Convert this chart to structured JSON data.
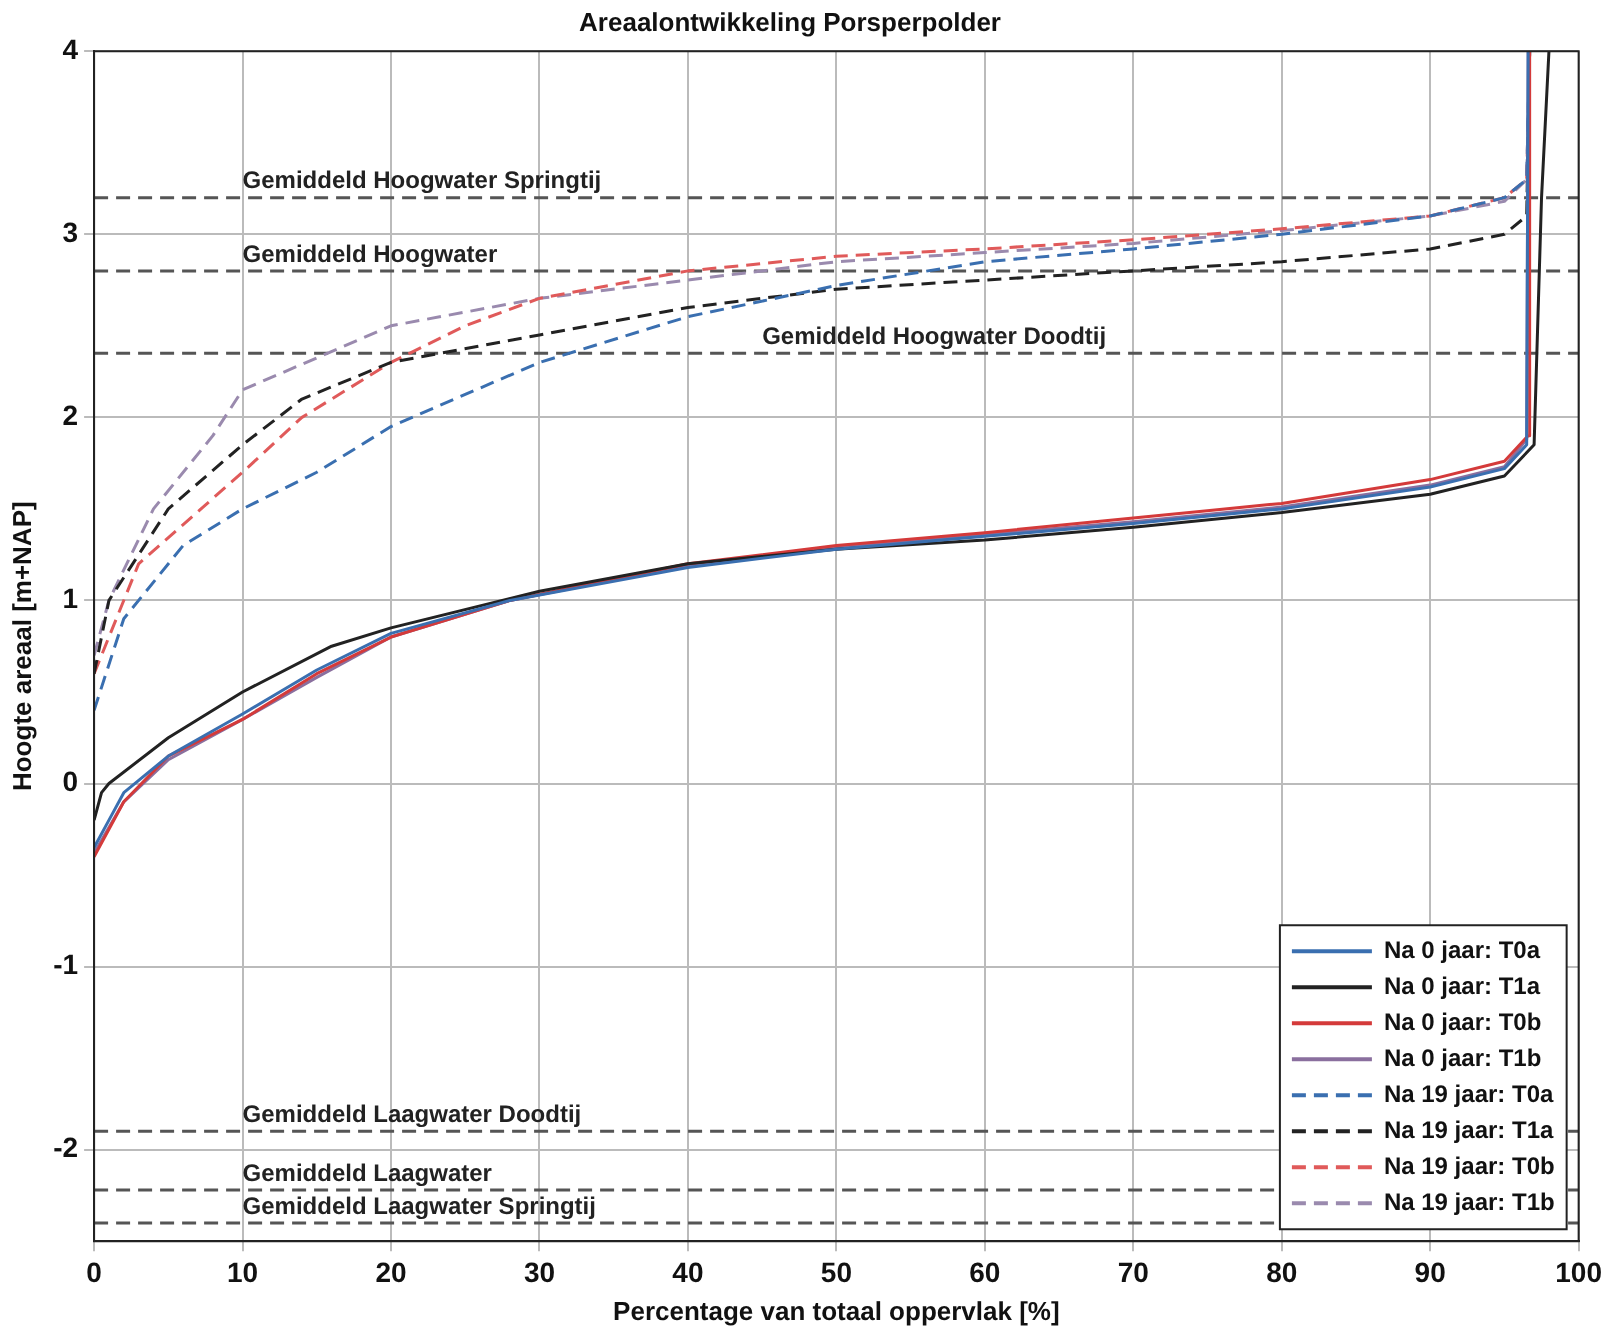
{
  "chart_data": {
    "type": "line",
    "title": "Areaalontwikkeling Porsperpolder",
    "xlabel": "Percentage van totaal oppervlak [%]",
    "ylabel": "Hoogte areaal [m+NAP]",
    "xlim": [
      0,
      100
    ],
    "ylim": [
      -2.5,
      4
    ],
    "xticks": [
      0,
      10,
      20,
      30,
      40,
      50,
      60,
      70,
      80,
      90,
      100
    ],
    "yticks": [
      -2,
      -1,
      0,
      1,
      2,
      3,
      4
    ],
    "grid": true,
    "legend": "bottom right",
    "series": [
      {
        "name": "Na 0 jaar: T0a",
        "color": "#3a6fb0",
        "line_style": "solid",
        "x": [
          0,
          1,
          2,
          5,
          10,
          15,
          20,
          28,
          40,
          50,
          60,
          70,
          80,
          90,
          95,
          96.5,
          96.6
        ],
        "values": [
          -0.35,
          -0.2,
          -0.05,
          0.15,
          0.38,
          0.62,
          0.82,
          1.0,
          1.18,
          1.28,
          1.35,
          1.42,
          1.5,
          1.62,
          1.72,
          1.85,
          4
        ]
      },
      {
        "name": "Na 0 jaar: T1a",
        "color": "#222222",
        "line_style": "solid",
        "x": [
          0,
          0.5,
          1,
          5,
          10,
          16,
          20,
          30,
          40,
          50,
          60,
          70,
          80,
          90,
          95,
          97,
          97.5,
          98
        ],
        "values": [
          -0.2,
          -0.05,
          0,
          0.25,
          0.5,
          0.75,
          0.85,
          1.05,
          1.2,
          1.28,
          1.33,
          1.4,
          1.48,
          1.58,
          1.68,
          1.85,
          3.2,
          4
        ]
      },
      {
        "name": "Na 0 jaar: T0b",
        "color": "#d43a3a",
        "line_style": "solid",
        "x": [
          0,
          2,
          5,
          10,
          15,
          20,
          28,
          40,
          50,
          60,
          70,
          80,
          90,
          95,
          96.6,
          96.7
        ],
        "values": [
          -0.4,
          -0.1,
          0.15,
          0.35,
          0.6,
          0.8,
          1.0,
          1.2,
          1.3,
          1.37,
          1.45,
          1.53,
          1.66,
          1.76,
          1.9,
          4
        ]
      },
      {
        "name": "Na 0 jaar: T1b",
        "color": "#8a6f9e",
        "line_style": "solid",
        "x": [
          0,
          2,
          5,
          10,
          15,
          20,
          28,
          40,
          50,
          60,
          70,
          80,
          90,
          95,
          96.5,
          96.6
        ],
        "values": [
          -0.38,
          -0.1,
          0.13,
          0.35,
          0.58,
          0.8,
          1.0,
          1.19,
          1.29,
          1.36,
          1.43,
          1.51,
          1.63,
          1.73,
          1.88,
          4
        ]
      },
      {
        "name": "Na 19 jaar: T0a",
        "color": "#3a6fb0",
        "line_style": "dashed",
        "x": [
          0,
          2,
          6,
          10,
          15,
          20,
          30,
          40,
          50,
          60,
          70,
          80,
          90,
          95,
          96.5,
          96.7
        ],
        "values": [
          0.4,
          0.9,
          1.3,
          1.5,
          1.7,
          1.95,
          2.3,
          2.55,
          2.72,
          2.85,
          2.92,
          3.0,
          3.1,
          3.2,
          3.3,
          4
        ]
      },
      {
        "name": "Na 19 jaar: T1a",
        "color": "#222222",
        "line_style": "dashed",
        "x": [
          0,
          1,
          5,
          10,
          14,
          20,
          30,
          40,
          50,
          60,
          70,
          80,
          90,
          95,
          96.5,
          96.7
        ],
        "values": [
          0.6,
          1.0,
          1.5,
          1.85,
          2.1,
          2.3,
          2.45,
          2.6,
          2.7,
          2.75,
          2.8,
          2.85,
          2.92,
          3.0,
          3.1,
          4
        ]
      },
      {
        "name": "Na 19 jaar: T0b",
        "color": "#e05a5a",
        "line_style": "dashed",
        "x": [
          0,
          3,
          10,
          14,
          20,
          25,
          30,
          40,
          50,
          60,
          70,
          80,
          90,
          95,
          96.5,
          96.7
        ],
        "values": [
          0.6,
          1.2,
          1.7,
          2.0,
          2.3,
          2.5,
          2.65,
          2.8,
          2.88,
          2.92,
          2.97,
          3.03,
          3.1,
          3.2,
          3.3,
          4
        ]
      },
      {
        "name": "Na 19 jaar: T1b",
        "color": "#9a8aae",
        "line_style": "dashed",
        "x": [
          0,
          1,
          4,
          8,
          10,
          20,
          30,
          40,
          50,
          60,
          70,
          80,
          90,
          95,
          96.5,
          96.7
        ],
        "values": [
          0.7,
          1.0,
          1.5,
          1.9,
          2.15,
          2.5,
          2.65,
          2.75,
          2.85,
          2.9,
          2.95,
          3.02,
          3.1,
          3.18,
          3.3,
          4
        ]
      }
    ],
    "ref_lines": [
      {
        "axis": "y",
        "value": 3.2,
        "label": "Gemiddeld Hoogwater Springtij",
        "color": "#555555",
        "line_style": "dashed"
      },
      {
        "axis": "y",
        "value": 2.8,
        "label": "Gemiddeld Hoogwater",
        "color": "#555555",
        "line_style": "dashed"
      },
      {
        "axis": "y",
        "value": 2.35,
        "label": "Gemiddeld Hoogwater Doodtij",
        "color": "#555555",
        "line_style": "dashed"
      },
      {
        "axis": "y",
        "value": -1.9,
        "label": "Gemiddeld Laagwater Doodtij",
        "color": "#555555",
        "line_style": "dashed"
      },
      {
        "axis": "y",
        "value": -2.22,
        "label": "Gemiddeld Laagwater",
        "color": "#555555",
        "line_style": "dashed"
      },
      {
        "axis": "y",
        "value": -2.4,
        "label": "Gemiddeld Laagwater Springtij",
        "color": "#555555",
        "line_style": "dashed"
      }
    ]
  }
}
